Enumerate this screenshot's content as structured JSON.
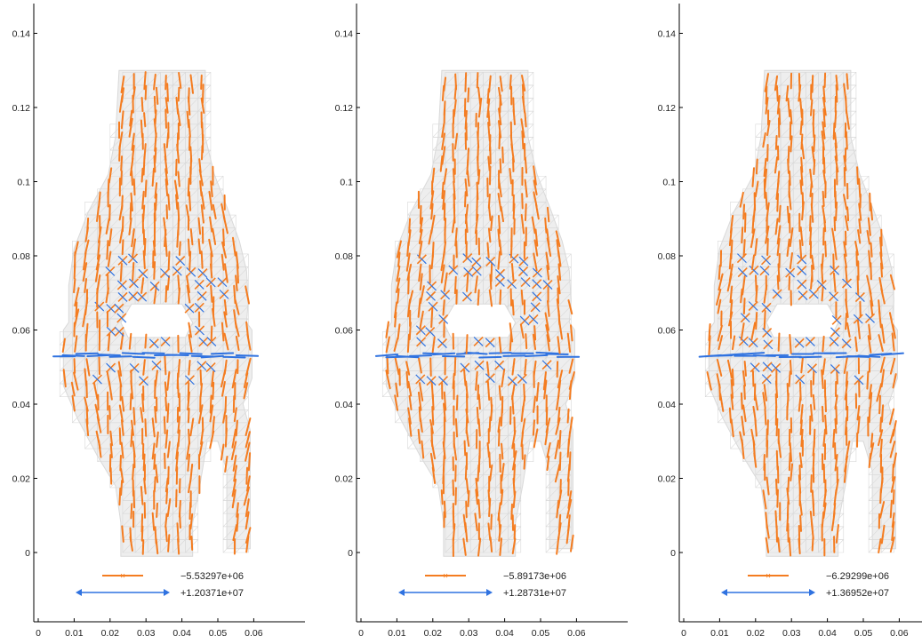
{
  "chart_data": [
    {
      "type": "scatter",
      "title": "",
      "xlabel": "",
      "ylabel": "",
      "xlim": [
        -0.002,
        0.066
      ],
      "ylim": [
        -0.018,
        0.148
      ],
      "x_ticks": [
        "0",
        "0.01",
        "0.02",
        "0.03",
        "0.04",
        "0.05",
        "0.06"
      ],
      "y_ticks": [
        "0",
        "0.02",
        "0.04",
        "0.06",
        "0.08",
        "0.1",
        "0.12",
        "0.14"
      ],
      "grid": false,
      "legend": [
        {
          "label": "−5.53297e+06",
          "color": "#f47c20",
          "kind": "compression"
        },
        {
          "label": "+1.20371e+07",
          "color": "#2f72e0",
          "kind": "tension"
        }
      ]
    },
    {
      "type": "scatter",
      "title": "",
      "xlabel": "",
      "ylabel": "",
      "xlim": [
        -0.002,
        0.066
      ],
      "ylim": [
        -0.018,
        0.148
      ],
      "x_ticks": [
        "0",
        "0.01",
        "0.02",
        "0.03",
        "0.04",
        "0.05",
        "0.06"
      ],
      "y_ticks": [
        "0",
        "0.02",
        "0.04",
        "0.06",
        "0.08",
        "0.1",
        "0.12",
        "0.14"
      ],
      "grid": false,
      "legend": [
        {
          "label": "−5.89173e+06",
          "color": "#f47c20",
          "kind": "compression"
        },
        {
          "label": "+1.28731e+07",
          "color": "#2f72e0",
          "kind": "tension"
        }
      ]
    },
    {
      "type": "scatter",
      "title": "",
      "xlabel": "",
      "ylabel": "",
      "xlim": [
        -0.002,
        0.066
      ],
      "ylim": [
        -0.018,
        0.148
      ],
      "x_ticks": [
        "0",
        "0.01",
        "0.02",
        "0.03",
        "0.04",
        "0.05",
        "0.06"
      ],
      "y_ticks": [
        "0",
        "0.02",
        "0.04",
        "0.06",
        "0.08",
        "0.1",
        "0.12",
        "0.14"
      ],
      "grid": false,
      "legend": [
        {
          "label": "−6.29299e+06",
          "color": "#f47c20",
          "kind": "compression"
        },
        {
          "label": "+1.36952e+07",
          "color": "#2f72e0",
          "kind": "tension"
        }
      ]
    }
  ],
  "colors": {
    "mesh": "#d9d9d9",
    "mesh_fill": "#eeeeee",
    "compression": "#f47c20",
    "tension": "#2f72e0",
    "axis": "#000000"
  }
}
